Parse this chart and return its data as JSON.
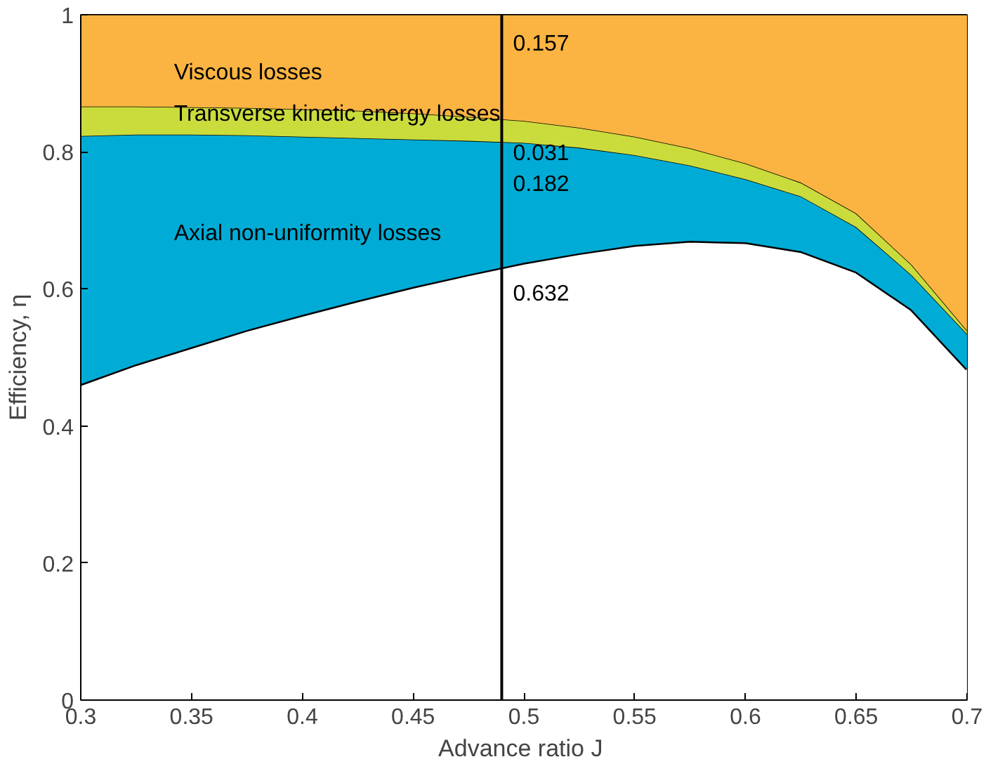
{
  "chart_data": {
    "type": "area",
    "stacked": true,
    "xlabel": "Advance ratio  J",
    "ylabel": "Efficiency, η",
    "x": [
      0.3,
      0.325,
      0.35,
      0.375,
      0.4,
      0.425,
      0.45,
      0.475,
      0.5,
      0.525,
      0.55,
      0.575,
      0.6,
      0.625,
      0.65,
      0.675,
      0.7
    ],
    "series": [
      {
        "color": "#ffffff",
        "values": [
          0.461,
          0.49,
          0.515,
          0.54,
          0.562,
          0.583,
          0.603,
          0.621,
          0.638,
          0.652,
          0.664,
          0.67,
          0.668,
          0.655,
          0.625,
          0.57,
          0.483
        ]
      },
      {
        "color": "#00acd6",
        "values": [
          0.362,
          0.335,
          0.31,
          0.284,
          0.26,
          0.237,
          0.215,
          0.195,
          0.175,
          0.154,
          0.131,
          0.11,
          0.092,
          0.08,
          0.065,
          0.05,
          0.051
        ]
      },
      {
        "color": "#cadc3c",
        "values": [
          0.043,
          0.041,
          0.04,
          0.04,
          0.04,
          0.04,
          0.038,
          0.035,
          0.032,
          0.029,
          0.027,
          0.025,
          0.023,
          0.02,
          0.02,
          0.015,
          0.005
        ]
      },
      {
        "color": "#fbb441",
        "values": [
          0.134,
          0.134,
          0.135,
          0.136,
          0.138,
          0.14,
          0.144,
          0.149,
          0.155,
          0.165,
          0.178,
          0.195,
          0.217,
          0.245,
          0.29,
          0.365,
          0.461
        ]
      }
    ],
    "xlim": [
      0.3,
      0.7
    ],
    "ylim": [
      0,
      1
    ],
    "xticks": [
      0.3,
      0.35,
      0.4,
      0.45,
      0.5,
      0.55,
      0.6,
      0.65,
      0.7
    ],
    "yticks": [
      0,
      0.2,
      0.4,
      0.6,
      0.8,
      1
    ],
    "ref_lines": [
      {
        "axis": "x",
        "value": 0.49,
        "color": "#000000"
      }
    ],
    "annotations": [
      "0.157",
      "0.031",
      "0.182",
      "0.632",
      "Viscous losses",
      "Transverse kinetic energy losses",
      "Axial non-uniformity losses"
    ]
  }
}
